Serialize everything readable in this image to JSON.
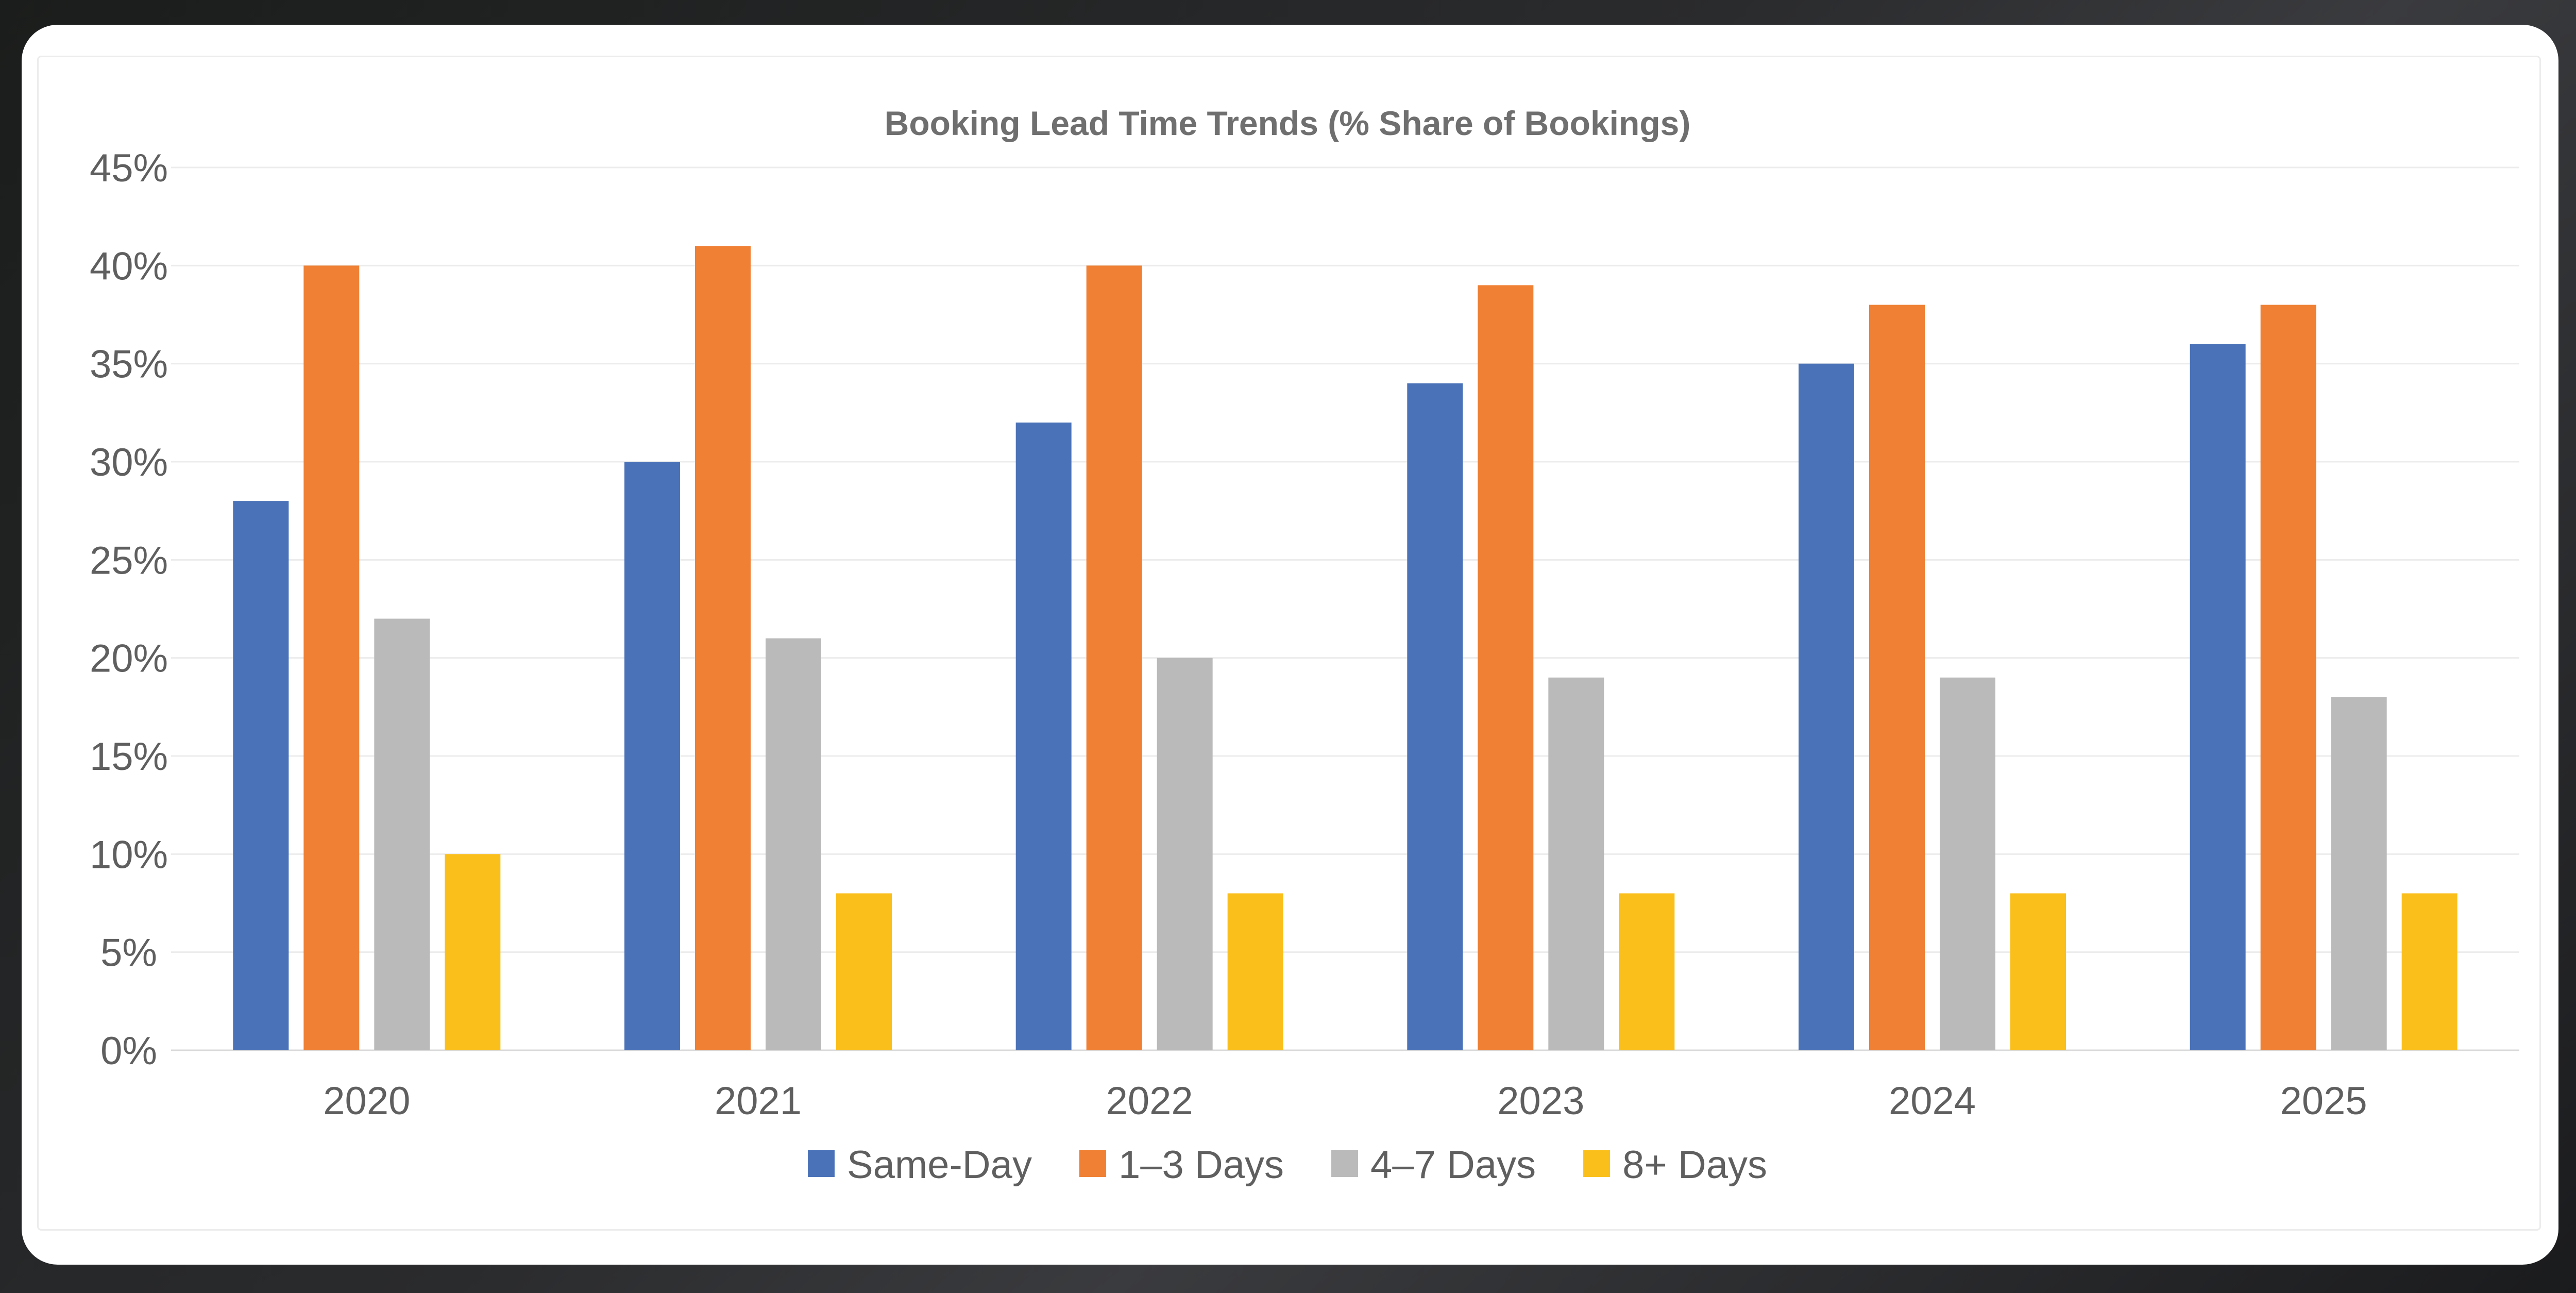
{
  "chart_data": {
    "type": "bar",
    "title": "Booking Lead Time Trends (% Share of Bookings)",
    "xlabel": "",
    "ylabel": "",
    "categories": [
      "2020",
      "2021",
      "2022",
      "2023",
      "2024",
      "2025"
    ],
    "series": [
      {
        "name": "Same-Day",
        "color": "#4a72b8",
        "values": [
          28,
          30,
          32,
          34,
          35,
          36
        ]
      },
      {
        "name": "1–3 Days",
        "color": "#ef8034",
        "values": [
          40,
          41,
          40,
          39,
          38,
          38
        ]
      },
      {
        "name": "4–7 Days",
        "color": "#bababa",
        "values": [
          22,
          21,
          20,
          19,
          19,
          18
        ]
      },
      {
        "name": "8+ Days",
        "color": "#fbbf1c",
        "values": [
          10,
          8,
          8,
          8,
          8,
          8
        ]
      }
    ],
    "ylim": [
      0,
      45
    ],
    "yticks": [
      0,
      5,
      10,
      15,
      20,
      25,
      30,
      35,
      40,
      45
    ],
    "ytick_suffix": "%",
    "grid": true,
    "legend_position": "bottom"
  }
}
